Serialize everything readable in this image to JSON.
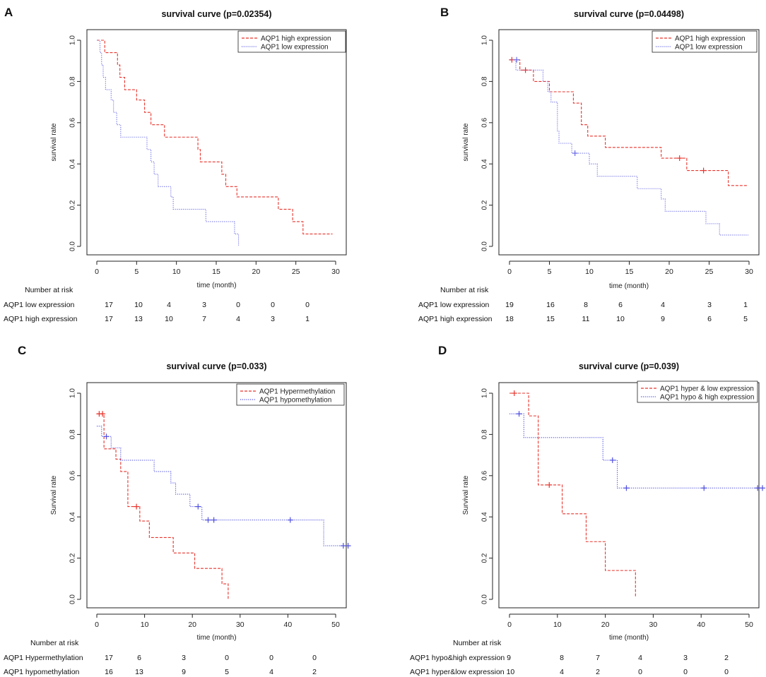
{
  "chart_data": [
    {
      "panel_label": "A",
      "type": "line",
      "title": "survival curve (p=0.02354)",
      "xlabel": "time (month)",
      "ylabel": "survival rate",
      "xlim": [
        0,
        30
      ],
      "ylim": [
        0,
        1
      ],
      "x_ticks": [
        "0",
        "5",
        "10",
        "15",
        "20",
        "25",
        "30"
      ],
      "y_ticks": [
        "0.0",
        "0.2",
        "0.4",
        "0.6",
        "0.8",
        "1.0"
      ],
      "legend_position": "top-right",
      "series": [
        {
          "name": "AQP1 high expression",
          "color": "#e8342c",
          "style": "dashed",
          "steps": [
            [
              0,
              1
            ],
            [
              1,
              0.94
            ],
            [
              2.6,
              0.88
            ],
            [
              2.9,
              0.82
            ],
            [
              3.5,
              0.76
            ],
            [
              5,
              0.71
            ],
            [
              6,
              0.65
            ],
            [
              6.8,
              0.59
            ],
            [
              8.5,
              0.53
            ],
            [
              12.7,
              0.47
            ],
            [
              13,
              0.41
            ],
            [
              15.7,
              0.35
            ],
            [
              16.2,
              0.29
            ],
            [
              17.6,
              0.24
            ],
            [
              22.8,
              0.18
            ],
            [
              24.6,
              0.12
            ],
            [
              25.9,
              0.06
            ],
            [
              29.6,
              0.06
            ]
          ],
          "censors": []
        },
        {
          "name": "AQP1 low expression",
          "color": "#6a6ae6",
          "style": "dotted",
          "steps": [
            [
              0,
              1
            ],
            [
              0.4,
              0.94
            ],
            [
              0.6,
              0.88
            ],
            [
              0.8,
              0.82
            ],
            [
              1.1,
              0.76
            ],
            [
              1.8,
              0.71
            ],
            [
              2.1,
              0.65
            ],
            [
              2.5,
              0.59
            ],
            [
              3,
              0.53
            ],
            [
              6.3,
              0.47
            ],
            [
              6.8,
              0.41
            ],
            [
              7.2,
              0.35
            ],
            [
              7.7,
              0.29
            ],
            [
              9.3,
              0.24
            ],
            [
              9.6,
              0.18
            ],
            [
              13.7,
              0.12
            ],
            [
              17.3,
              0.06
            ],
            [
              17.8,
              0
            ]
          ],
          "censors": []
        }
      ],
      "risk_title": "Number at risk",
      "risk_rows": [
        {
          "label": "AQP1 low expression",
          "values": [
            "17",
            "10",
            "4",
            "3",
            "0",
            "0",
            "0"
          ]
        },
        {
          "label": "AQP1 high expression",
          "values": [
            "17",
            "13",
            "10",
            "7",
            "4",
            "3",
            "1"
          ]
        }
      ]
    },
    {
      "panel_label": "B",
      "type": "line",
      "title": "survival curve (p=0.04498)",
      "xlabel": "time (month)",
      "ylabel": "survival rate",
      "xlim": [
        0,
        30
      ],
      "ylim": [
        0,
        1
      ],
      "x_ticks": [
        "0",
        "5",
        "10",
        "15",
        "20",
        "25",
        "30"
      ],
      "y_ticks": [
        "0.0",
        "0.2",
        "0.4",
        "0.6",
        "0.8",
        "1.0"
      ],
      "legend_position": "top-right",
      "series": [
        {
          "name": "AQP1 high expression",
          "color": "#e8342c",
          "style": "dashed",
          "steps": [
            [
              0,
              0.905
            ],
            [
              1.3,
              0.855
            ],
            [
              3,
              0.8
            ],
            [
              5,
              0.75
            ],
            [
              8,
              0.695
            ],
            [
              9,
              0.59
            ],
            [
              9.8,
              0.535
            ],
            [
              12,
              0.48
            ],
            [
              19,
              0.428
            ],
            [
              22.2,
              0.368
            ],
            [
              27.4,
              0.295
            ],
            [
              29.9,
              0.295
            ]
          ],
          "censors": [
            [
              0.3,
              0.905
            ],
            [
              2,
              0.855
            ],
            [
              21.3,
              0.428
            ],
            [
              24.3,
              0.368
            ]
          ]
        },
        {
          "name": "AQP1 low expression",
          "color": "#6a6ae6",
          "style": "dotted",
          "steps": [
            [
              0,
              0.905
            ],
            [
              0.8,
              0.855
            ],
            [
              4.2,
              0.8
            ],
            [
              4.8,
              0.75
            ],
            [
              5.2,
              0.7
            ],
            [
              6,
              0.56
            ],
            [
              6.2,
              0.5
            ],
            [
              7.8,
              0.452
            ],
            [
              10,
              0.4
            ],
            [
              11,
              0.34
            ],
            [
              16,
              0.28
            ],
            [
              19,
              0.23
            ],
            [
              19.5,
              0.17
            ],
            [
              24.6,
              0.11
            ],
            [
              26.3,
              0.055
            ],
            [
              29.9,
              0.055
            ]
          ],
          "censors": [
            [
              0.9,
              0.905
            ],
            [
              8.2,
              0.452
            ]
          ]
        }
      ],
      "risk_title": "Number at risk",
      "risk_rows": [
        {
          "label": "AQP1 low expression",
          "values": [
            "19",
            "16",
            "8",
            "6",
            "4",
            "3",
            "1"
          ]
        },
        {
          "label": "AQP1 high expression",
          "values": [
            "18",
            "15",
            "11",
            "10",
            "9",
            "6",
            "5"
          ]
        }
      ]
    },
    {
      "panel_label": "C",
      "type": "line",
      "title": "survival curve (p=0.033)",
      "xlabel": "time (month)",
      "ylabel": "Survival rate",
      "xlim": [
        0,
        50
      ],
      "ylim": [
        0,
        1
      ],
      "x_ticks": [
        "0",
        "10",
        "20",
        "30",
        "40",
        "50"
      ],
      "y_ticks": [
        "0.0",
        "0.2",
        "0.4",
        "0.6",
        "0.8",
        "1.0"
      ],
      "legend_position": "top-right",
      "series": [
        {
          "name": "AQP1 Hypermethylation",
          "color": "#e8342c",
          "style": "dashed",
          "steps": [
            [
              0,
              0.9
            ],
            [
              1.5,
              0.73
            ],
            [
              4,
              0.68
            ],
            [
              5,
              0.62
            ],
            [
              6.5,
              0.45
            ],
            [
              9,
              0.38
            ],
            [
              11,
              0.3
            ],
            [
              16,
              0.225
            ],
            [
              20.5,
              0.15
            ],
            [
              26.2,
              0.075
            ],
            [
              27.5,
              0
            ]
          ],
          "censors": [
            [
              0.5,
              0.9
            ],
            [
              1.2,
              0.9
            ],
            [
              8.3,
              0.45
            ]
          ]
        },
        {
          "name": "AQP1 hypomethylation",
          "color": "#5050e0",
          "style": "dotted",
          "steps": [
            [
              0,
              0.84
            ],
            [
              1,
              0.79
            ],
            [
              3,
              0.735
            ],
            [
              5,
              0.675
            ],
            [
              12,
              0.62
            ],
            [
              15.5,
              0.565
            ],
            [
              16.5,
              0.51
            ],
            [
              19.5,
              0.45
            ],
            [
              22,
              0.385
            ],
            [
              47.5,
              0.26
            ],
            [
              53,
              0.26
            ]
          ],
          "censors": [
            [
              2,
              0.79
            ],
            [
              21.2,
              0.45
            ],
            [
              23.3,
              0.385
            ],
            [
              24.5,
              0.385
            ],
            [
              40.5,
              0.385
            ],
            [
              51.6,
              0.26
            ],
            [
              52.6,
              0.26
            ]
          ]
        }
      ],
      "risk_title": "Number at risk",
      "risk_rows": [
        {
          "label": "AQP1 Hypermethylation",
          "values": [
            "17",
            "6",
            "3",
            "0",
            "0",
            "0"
          ]
        },
        {
          "label": "AQP1 hypomethylation",
          "values": [
            "16",
            "13",
            "9",
            "5",
            "4",
            "2"
          ]
        }
      ]
    },
    {
      "panel_label": "D",
      "type": "line",
      "title": "survival curve (p=0.039)",
      "xlabel": "time (month)",
      "ylabel": "Survival rate",
      "xlim": [
        0,
        50
      ],
      "ylim": [
        0,
        1
      ],
      "x_ticks": [
        "0",
        "10",
        "20",
        "30",
        "40",
        "50"
      ],
      "y_ticks": [
        "0.0",
        "0.2",
        "0.4",
        "0.6",
        "0.8",
        "1.0"
      ],
      "legend_position": "top-right",
      "series": [
        {
          "name": "AQP1 hyper & low expression",
          "color": "#e8342c",
          "style": "dashed",
          "steps": [
            [
              0,
              1.0
            ],
            [
              4,
              0.89
            ],
            [
              6,
              0.555
            ],
            [
              11,
              0.415
            ],
            [
              16,
              0.28
            ],
            [
              20,
              0.14
            ],
            [
              26.3,
              0.01
            ]
          ],
          "censors": [
            [
              1,
              1.0
            ],
            [
              8.3,
              0.555
            ]
          ]
        },
        {
          "name": "AQP1 hypo & high expression",
          "color": "#5050e0",
          "style": "dotted",
          "steps": [
            [
              0,
              0.9
            ],
            [
              3,
              0.785
            ],
            [
              19.5,
              0.675
            ],
            [
              22.5,
              0.54
            ],
            [
              53,
              0.54
            ]
          ],
          "censors": [
            [
              2,
              0.9
            ],
            [
              21.5,
              0.675
            ],
            [
              24.4,
              0.54
            ],
            [
              40.6,
              0.54
            ],
            [
              51.8,
              0.54
            ],
            [
              52.8,
              0.54
            ]
          ]
        }
      ],
      "risk_title": "Number at risk",
      "risk_rows": [
        {
          "label": "AQP1 hypo&high expression 9",
          "values": [
            "8",
            "7",
            "4",
            "3",
            "2"
          ]
        },
        {
          "label": "AQP1 hyper&low expression 10",
          "values": [
            "4",
            "2",
            "0",
            "0",
            "0"
          ]
        }
      ]
    }
  ]
}
